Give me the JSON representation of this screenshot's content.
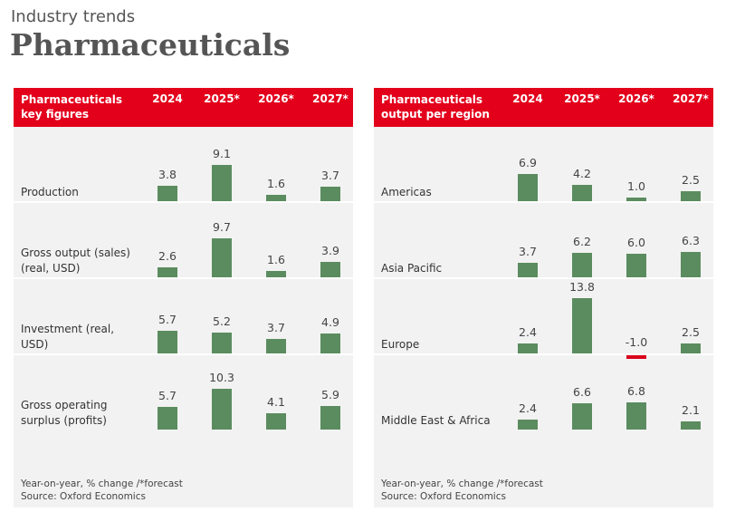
{
  "header": {
    "kicker": "Industry trends",
    "title": "Pharmaceuticals"
  },
  "chart_data": [
    {
      "type": "bar",
      "title": "Pharmaceuticals key figures",
      "categories": [
        "2024",
        "2025*",
        "2026*",
        "2027*"
      ],
      "negative_color": "#d9001b",
      "series": [
        {
          "name": "Production",
          "color": "#5b8c5f",
          "values": [
            3.8,
            9.1,
            1.6,
            3.7
          ]
        },
        {
          "name": "Gross output (sales) (real, USD)",
          "color": "#5b8c5f",
          "values": [
            2.6,
            9.7,
            1.6,
            3.9
          ]
        },
        {
          "name": "Investment (real, USD)",
          "color": "#5b8c5f",
          "values": [
            5.7,
            5.2,
            3.7,
            4.9
          ]
        },
        {
          "name": "Gross operating surplus (profits)",
          "color": "#5b8c5f",
          "values": [
            5.7,
            10.3,
            4.1,
            5.9
          ]
        }
      ],
      "note": "Year-on-year, % change /*forecast",
      "source": "Source: Oxford Economics"
    },
    {
      "type": "bar",
      "title": "Pharmaceuticals output per region",
      "categories": [
        "2024",
        "2025*",
        "2026*",
        "2027*"
      ],
      "negative_color": "#d9001b",
      "series": [
        {
          "name": "Americas",
          "color": "#5b8c5f",
          "values": [
            6.9,
            4.2,
            1.0,
            2.5
          ],
          "value_labels": [
            "6.9",
            "4.2",
            "1.0",
            "2.5"
          ]
        },
        {
          "name": "Asia Pacific",
          "color": "#5b8c5f",
          "values": [
            3.7,
            6.2,
            6.0,
            6.3
          ],
          "value_labels": [
            "3.7",
            "6.2",
            "6.0",
            "6.3"
          ]
        },
        {
          "name": "Europe",
          "color": "#5b8c5f",
          "values": [
            2.4,
            13.8,
            -1.0,
            2.5
          ],
          "value_labels": [
            "2.4",
            "13.8",
            "-1.0",
            "2.5"
          ]
        },
        {
          "name": "Middle East & Africa",
          "color": "#5b8c5f",
          "values": [
            2.4,
            6.6,
            6.8,
            2.1
          ]
        }
      ],
      "note": "Year-on-year, % change /*forecast",
      "source": "Source: Oxford Economics"
    }
  ]
}
